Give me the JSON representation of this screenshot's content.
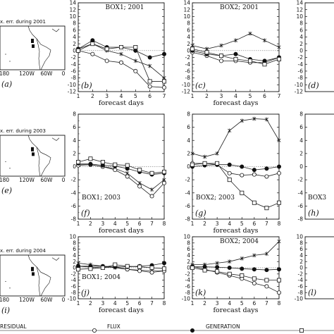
{
  "legend": [
    {
      "label": "RESIDUAL",
      "marker": "none"
    },
    {
      "label": "FLUX",
      "marker": "circle-open"
    },
    {
      "label": "GENERATION",
      "marker": "circle-filled"
    },
    {
      "label": "",
      "marker": "square-open"
    }
  ],
  "map_panels": [
    {
      "title": "x. err. during 2001",
      "panel": "(a)",
      "lon_labels": [
        "180",
        "120W",
        "60W",
        "0"
      ]
    },
    {
      "title": "x. err. during 2003",
      "panel": "(e)",
      "lon_labels": [
        "180",
        "120W",
        "60W",
        "0"
      ]
    },
    {
      "title": "x. err. during 2004",
      "panel": "(i)",
      "lon_labels": [
        "180",
        "120W",
        "60W",
        "0"
      ]
    }
  ],
  "chart_data": [
    {
      "type": "line",
      "panel": "(b)",
      "box_label": "BOX1; 2001",
      "box_pos": "top",
      "xlabel": "forecast days",
      "xlim": [
        1,
        7
      ],
      "ylim": [
        -12,
        14
      ],
      "x": [
        1,
        2,
        3,
        4,
        5,
        6,
        7
      ],
      "series": [
        {
          "marker": "star",
          "values": [
            0.5,
            2,
            0,
            -1,
            -3,
            -4.5,
            -8
          ]
        },
        {
          "marker": "circle-open",
          "values": [
            0,
            -1,
            -3,
            -3.5,
            -6,
            -10.5,
            -10.8
          ]
        },
        {
          "marker": "circle-filled",
          "values": [
            0.5,
            3,
            1,
            1,
            0,
            -2,
            -1
          ]
        },
        {
          "marker": "square-open",
          "values": [
            0,
            2,
            0.5,
            1,
            1,
            -9,
            -9
          ]
        }
      ]
    },
    {
      "type": "line",
      "panel": "(c)",
      "box_label": "BOX2; 2001",
      "box_pos": "top",
      "xlabel": "forecast days",
      "xlim": [
        1,
        7
      ],
      "ylim": [
        -12,
        14
      ],
      "x": [
        1,
        2,
        3,
        4,
        5,
        6,
        7
      ],
      "series": [
        {
          "marker": "star",
          "values": [
            1.5,
            0.5,
            1.5,
            3,
            5,
            3,
            1
          ]
        },
        {
          "marker": "circle-open",
          "values": [
            -0.5,
            -1.5,
            -3,
            -3,
            -3.5,
            -3.5,
            -2
          ]
        },
        {
          "marker": "circle-filled",
          "values": [
            0,
            -1,
            -1.5,
            -1,
            -2.5,
            -3,
            -2
          ]
        },
        {
          "marker": "square-open",
          "values": [
            0.5,
            -0.5,
            -1.5,
            -2.5,
            -3,
            -4,
            -2.5
          ]
        }
      ]
    },
    {
      "type": "line",
      "panel": "(f)",
      "box_label": "BOX1; 2003",
      "box_pos": "bottom",
      "xlabel": "forecast days",
      "xlim": [
        1,
        8
      ],
      "ylim": [
        -8,
        8
      ],
      "x": [
        1,
        2,
        3,
        4,
        5,
        6,
        7,
        8
      ],
      "series": [
        {
          "marker": "star",
          "values": [
            0.3,
            0.3,
            0,
            -0.3,
            -1,
            -2.5,
            -3.5,
            -2
          ]
        },
        {
          "marker": "circle-open",
          "values": [
            0.2,
            0.3,
            0,
            -0.5,
            -1.5,
            -3,
            -4.5,
            -2.5
          ]
        },
        {
          "marker": "circle-filled",
          "values": [
            0.5,
            0.4,
            0.2,
            0.1,
            -0.3,
            -0.8,
            -1.2,
            -1
          ]
        },
        {
          "marker": "square-open",
          "values": [
            0.7,
            1.2,
            0.7,
            0.3,
            0.2,
            -0.5,
            -1,
            -0.8
          ]
        }
      ]
    },
    {
      "type": "line",
      "panel": "(g)",
      "box_label": "BOX2; 2003",
      "box_pos": "bottom",
      "xlabel": "forecast days",
      "xlim": [
        1,
        8
      ],
      "ylim": [
        -8,
        8
      ],
      "x": [
        1,
        2,
        3,
        4,
        5,
        6,
        7,
        8
      ],
      "series": [
        {
          "marker": "star",
          "values": [
            2,
            1.5,
            2,
            5.5,
            7,
            7.3,
            7.2,
            4
          ]
        },
        {
          "marker": "circle-open",
          "values": [
            0.5,
            0.5,
            0.3,
            -1,
            -1.3,
            -1.2,
            -1.5,
            -1
          ]
        },
        {
          "marker": "circle-filled",
          "values": [
            0,
            0.2,
            0.3,
            0.3,
            0,
            -0.5,
            -0.3,
            0
          ]
        },
        {
          "marker": "square-open",
          "values": [
            0.3,
            0.5,
            0.5,
            -2,
            -4,
            -5.5,
            -6.3,
            -5.5
          ]
        }
      ]
    },
    {
      "type": "line",
      "panel": "(j)",
      "box_label": "BOX1; 2004",
      "box_pos": "bottom",
      "xlabel": "forecast days",
      "xlim": [
        1,
        8
      ],
      "ylim": [
        -10,
        10
      ],
      "x": [
        1,
        2,
        3,
        4,
        5,
        6,
        7,
        8
      ],
      "series": [
        {
          "marker": "star",
          "values": [
            1.5,
            1,
            0.5,
            0,
            -0.5,
            -0.8,
            -1,
            -1
          ]
        },
        {
          "marker": "circle-open",
          "values": [
            0.5,
            0.2,
            0,
            0.3,
            -0.5,
            -1,
            -1.5,
            -1
          ]
        },
        {
          "marker": "circle-filled",
          "values": [
            0.5,
            0.5,
            0.5,
            0.3,
            0.3,
            0.5,
            0.8,
            1.5
          ]
        },
        {
          "marker": "square-open",
          "values": [
            -0.5,
            -0.3,
            0,
            1,
            0.5,
            0.3,
            0,
            -0.3
          ]
        }
      ]
    },
    {
      "type": "line",
      "panel": "(k)",
      "box_label": "BOX2; 2004",
      "box_pos": "top",
      "xlabel": "forecast days",
      "xlim": [
        1,
        8
      ],
      "ylim": [
        -10,
        10
      ],
      "x": [
        1,
        2,
        3,
        4,
        5,
        6,
        7,
        8
      ],
      "series": [
        {
          "marker": "star",
          "values": [
            1,
            1,
            1.5,
            2,
            3,
            4,
            4.5,
            8.5
          ]
        },
        {
          "marker": "circle-open",
          "values": [
            0.5,
            -0.5,
            -1.5,
            -2.5,
            -3.5,
            -5,
            -6,
            -8
          ]
        },
        {
          "marker": "circle-filled",
          "values": [
            0.3,
            0.3,
            0.2,
            0,
            -0.3,
            -0.5,
            -0.7,
            -0.5
          ]
        },
        {
          "marker": "square-open",
          "values": [
            0,
            -0.8,
            -1.2,
            -2,
            -2.5,
            -3.5,
            -4,
            -4
          ]
        }
      ]
    }
  ],
  "partial_panels": [
    {
      "panel": "(d)",
      "yticks": [
        "14",
        "12",
        "10",
        "8",
        "6",
        "4",
        "2",
        "0",
        "-2",
        "-4",
        "-6",
        "-8",
        "-10",
        "-12"
      ]
    },
    {
      "panel": "(h)",
      "box_label": "BOX3",
      "yticks": [
        "8",
        "6",
        "4",
        "2",
        "0",
        "-2",
        "-4",
        "-6",
        "-8"
      ]
    },
    {
      "panel": "(l)",
      "yticks": [
        "10",
        "8",
        "6",
        "4",
        "2",
        "0",
        "-2",
        "-4",
        "-6",
        "-8",
        "-10"
      ]
    }
  ]
}
